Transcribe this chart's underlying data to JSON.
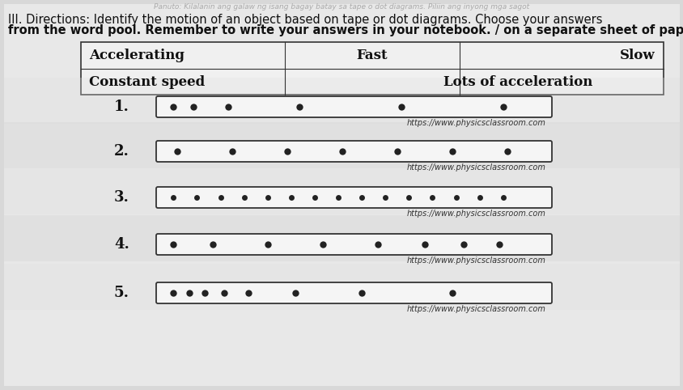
{
  "title_line1": "III. Directions: Identify the motion of an object based on tape or dot diagrams. Choose your answers",
  "title_line2": "from the word pool. Remember to write your answers in your notebook. / on a separate sheet of paper",
  "title_faint": "Panuto: Kilalanin ang galaw ng isang bagay batay sa tape o dot diagrams. Piliin ang inyong mga sagot",
  "word_pool": [
    "Accelerating",
    "Fast",
    "Slow",
    "Constant speed",
    "Lots of acceleration"
  ],
  "bg_color": "#d8d8d8",
  "paper_color": "#e8e8e8",
  "box_color": "#ffffff",
  "diagrams": [
    {
      "number": "1.",
      "url": "https://www.physicsclassroom.com",
      "dots": [
        0.04,
        0.09,
        0.18,
        0.36,
        0.62,
        0.88
      ],
      "dot_size": 6
    },
    {
      "number": "2.",
      "url": "https://www.physicsclassroom.com",
      "dots": [
        0.05,
        0.19,
        0.33,
        0.47,
        0.61,
        0.75,
        0.89
      ],
      "dot_size": 6
    },
    {
      "number": "3.",
      "url": "https://www.physicsclassroom.com",
      "dots": [
        0.04,
        0.1,
        0.16,
        0.22,
        0.28,
        0.34,
        0.4,
        0.46,
        0.52,
        0.58,
        0.64,
        0.7,
        0.76,
        0.82,
        0.88
      ],
      "dot_size": 5
    },
    {
      "number": "4.",
      "url": "https://www.physicsclassroom.com",
      "dots": [
        0.04,
        0.14,
        0.28,
        0.42,
        0.56,
        0.68,
        0.78,
        0.87
      ],
      "dot_size": 6
    },
    {
      "number": "5.",
      "url": "https://www.physicsclassroom.com",
      "dots": [
        0.04,
        0.08,
        0.12,
        0.17,
        0.23,
        0.35,
        0.52,
        0.75
      ],
      "dot_size": 6
    }
  ]
}
